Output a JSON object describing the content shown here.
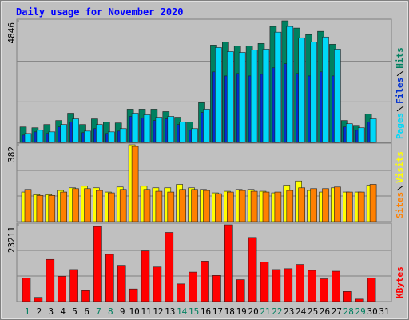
{
  "chart_data": [
    {
      "type": "bar",
      "title": "Daily usage for November 2020",
      "ylim": [
        0,
        4846
      ],
      "yticks": [
        4846
      ],
      "series": [
        {
          "name": "Hits",
          "color": "#008060",
          "values": [
            614,
            582,
            711,
            872,
            1163,
            711,
            937,
            808,
            775,
            1325,
            1325,
            1325,
            1228,
            1002,
            808,
            1583,
            3877,
            4006,
            3845,
            3845,
            3942,
            4620,
            4846,
            4556,
            4297,
            4426,
            3909,
            872,
            678,
            1131,
            0
          ]
        },
        {
          "name": "Files",
          "color": "#0030d0",
          "values": [
            291,
            420,
            355,
            614,
            808,
            388,
            549,
            355,
            452,
            1034,
            969,
            872,
            937,
            711,
            485,
            1195,
            2811,
            2649,
            2746,
            2649,
            2714,
            2972,
            3134,
            2746,
            2649,
            2811,
            2649,
            614,
            485,
            808,
            0
          ]
        },
        {
          "name": "Pages",
          "color": "#00d8f8",
          "values": [
            355,
            485,
            420,
            711,
            937,
            452,
            711,
            420,
            549,
            1163,
            1099,
            1002,
            1034,
            808,
            549,
            1325,
            3780,
            3619,
            3586,
            3683,
            3716,
            4394,
            4620,
            4168,
            4006,
            4200,
            3716,
            743,
            582,
            937,
            0
          ]
        }
      ]
    },
    {
      "type": "bar",
      "ylim": [
        0,
        382
      ],
      "yticks": [
        382
      ],
      "series": [
        {
          "name": "Visits",
          "color": "#ffff00",
          "values": [
            147,
            134,
            134,
            155,
            168,
            176,
            168,
            147,
            172,
            382,
            176,
            168,
            168,
            185,
            168,
            160,
            143,
            151,
            160,
            160,
            151,
            143,
            181,
            202,
            155,
            147,
            168,
            147,
            147,
            181,
            0
          ]
        },
        {
          "name": "Sites",
          "color": "#ff8000",
          "values": [
            160,
            130,
            130,
            147,
            164,
            164,
            155,
            143,
            160,
            374,
            160,
            151,
            147,
            160,
            160,
            155,
            139,
            147,
            155,
            151,
            147,
            147,
            155,
            168,
            164,
            164,
            172,
            147,
            147,
            185,
            0
          ]
        }
      ]
    },
    {
      "type": "bar",
      "ylim": [
        0,
        23211
      ],
      "yticks": [
        23211
      ],
      "categories": [
        "1",
        "2",
        "3",
        "4",
        "5",
        "6",
        "7",
        "8",
        "9",
        "10",
        "11",
        "12",
        "13",
        "14",
        "15",
        "16",
        "17",
        "18",
        "19",
        "20",
        "21",
        "22",
        "23",
        "24",
        "25",
        "26",
        "27",
        "28",
        "29",
        "30",
        "31"
      ],
      "category_colors": [
        "#008060",
        "#000000",
        "#000000",
        "#000000",
        "#000000",
        "#000000",
        "#008060",
        "#008060",
        "#000000",
        "#000000",
        "#000000",
        "#000000",
        "#000000",
        "#008060",
        "#008060",
        "#000000",
        "#000000",
        "#000000",
        "#000000",
        "#000000",
        "#008060",
        "#008060",
        "#000000",
        "#000000",
        "#000000",
        "#000000",
        "#000000",
        "#008060",
        "#008060",
        "#000000",
        "#000000"
      ],
      "series": [
        {
          "name": "KBytes",
          "color": "#ff0000",
          "values": [
            7140,
            1275,
            12750,
            7650,
            9690,
            3315,
            22695,
            14280,
            10965,
            3825,
            15300,
            10455,
            20910,
            5355,
            8925,
            12240,
            7905,
            23211,
            6630,
            19380,
            11985,
            9690,
            9945,
            11220,
            9435,
            6885,
            9180,
            3060,
            765,
            7140,
            0
          ]
        }
      ]
    }
  ]
}
